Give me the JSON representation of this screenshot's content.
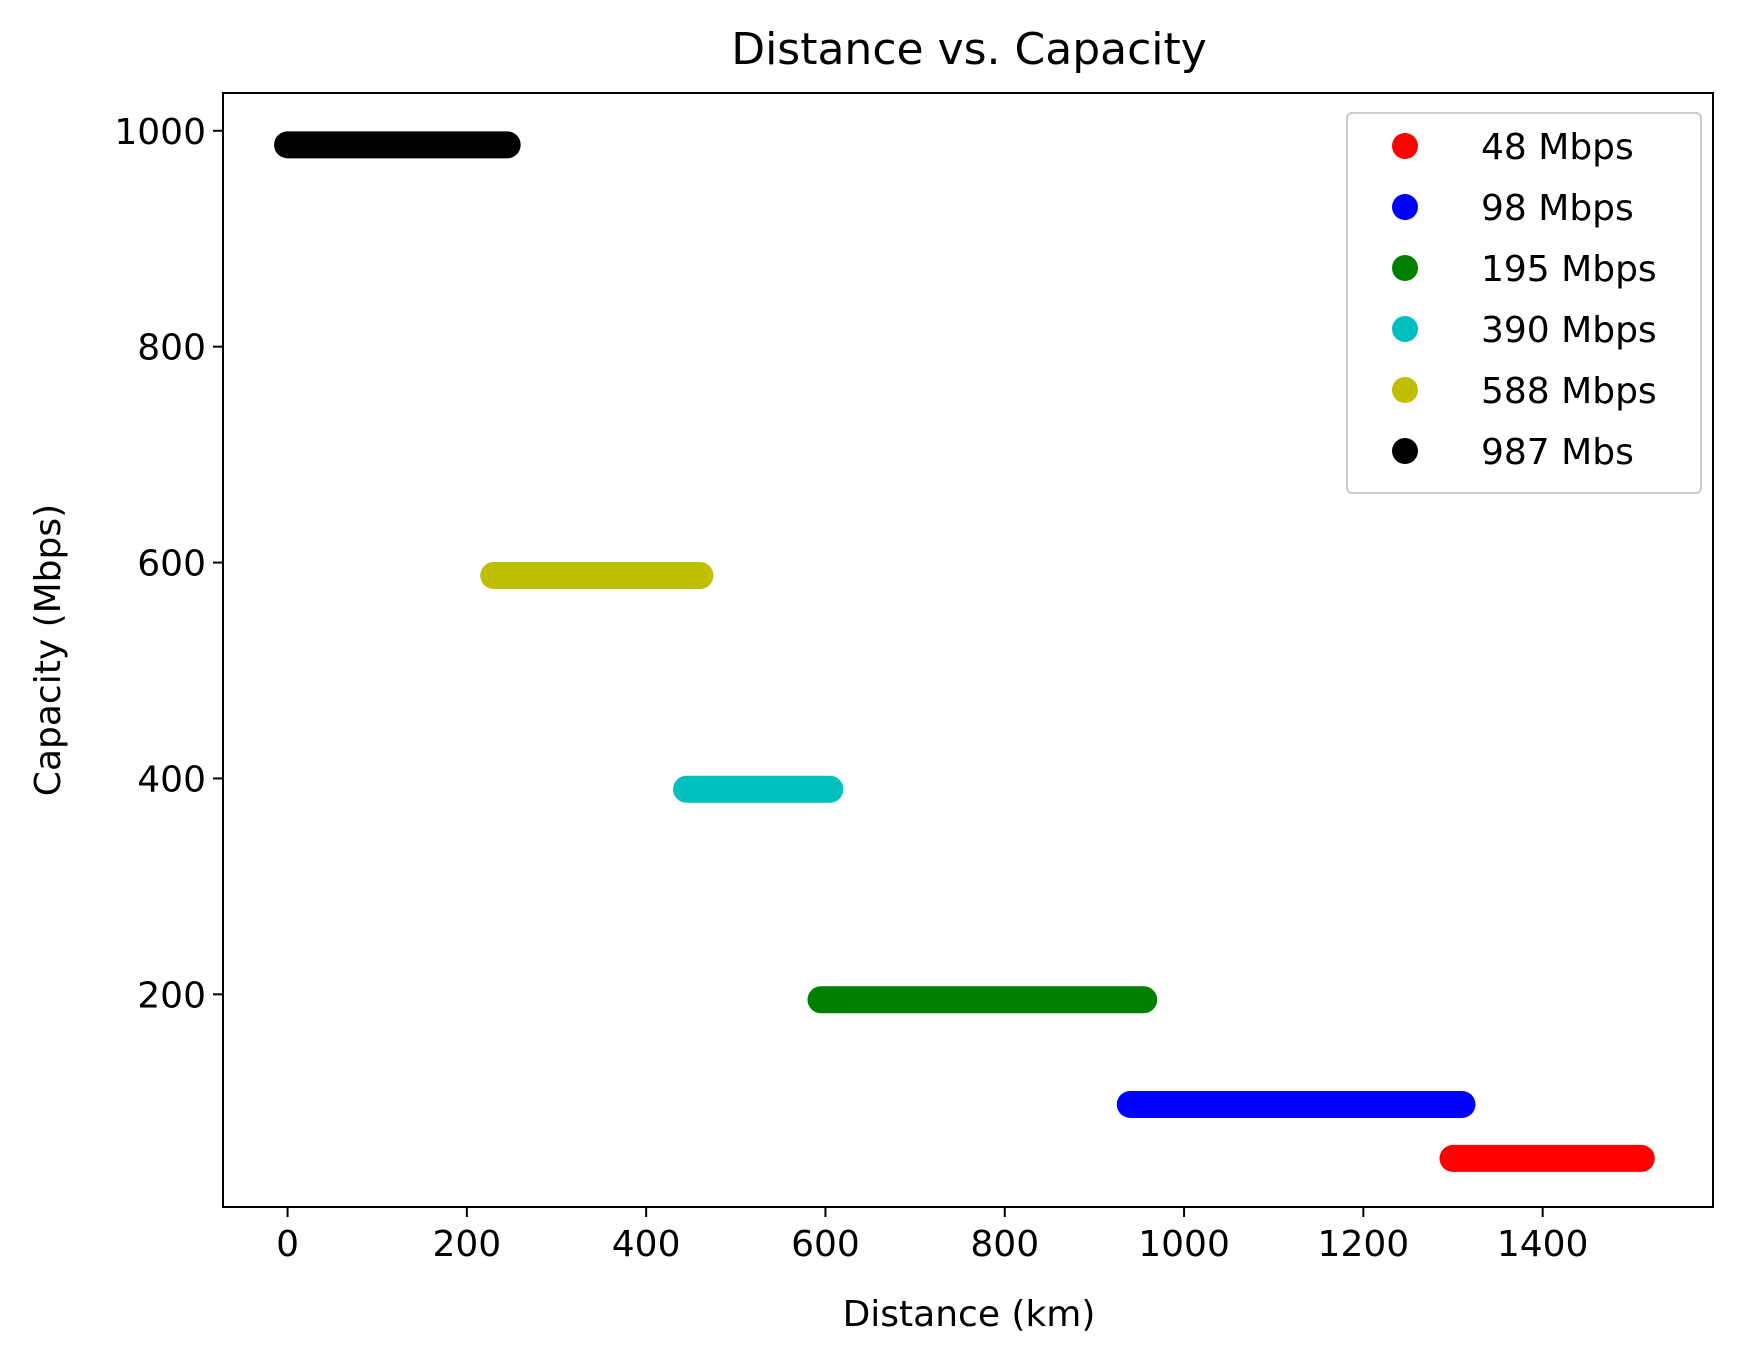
{
  "chart_data": {
    "type": "scatter",
    "title": "Distance vs. Capacity",
    "xlabel": "Distance (km)",
    "ylabel": "Capacity (Mbps)",
    "xlim": [
      -72,
      1590
    ],
    "ylim": [
      3,
      1035
    ],
    "xticks": [
      0,
      200,
      400,
      600,
      800,
      1000,
      1200,
      1400
    ],
    "yticks": [
      200,
      400,
      600,
      800,
      1000
    ],
    "grid": false,
    "legend_position": "top-right",
    "series": [
      {
        "name": "48 Mbps",
        "color": "#ff0000",
        "x": [
          1300,
          1510
        ],
        "y": 48
      },
      {
        "name": "98 Mbps",
        "color": "#0000ff",
        "x": [
          940,
          1310
        ],
        "y": 98
      },
      {
        "name": "195 Mbps",
        "color": "#008000",
        "x": [
          595,
          955
        ],
        "y": 195
      },
      {
        "name": "390 Mbps",
        "color": "#00bfbf",
        "x": [
          445,
          605
        ],
        "y": 390
      },
      {
        "name": "588 Mbps",
        "color": "#bfbf00",
        "x": [
          230,
          460
        ],
        "y": 588
      },
      {
        "name": "987 Mbs",
        "color": "#000000",
        "x": [
          0,
          245
        ],
        "y": 987
      }
    ]
  }
}
